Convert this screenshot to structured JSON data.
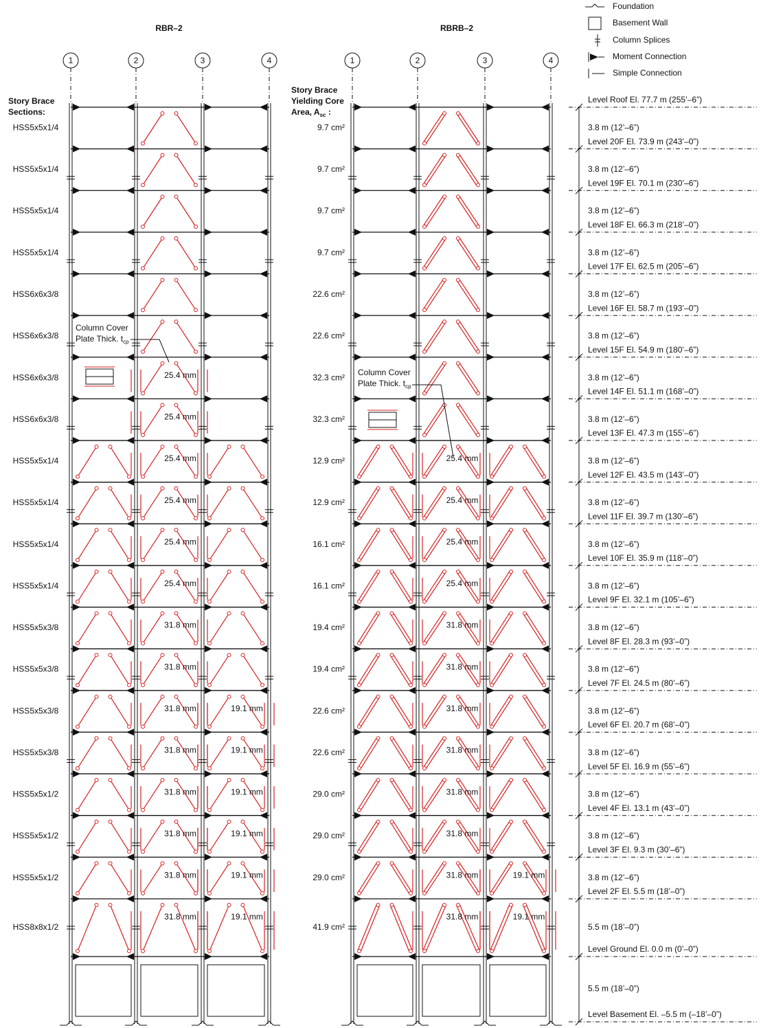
{
  "legend": [
    "Foundation",
    "Basement Wall",
    "Column Splices",
    "Moment Connection",
    "Simple Connection"
  ],
  "levels": [
    "Level Roof El. 77.7 m (255’–6”)",
    "Level 20F El. 73.9 m (243’–0”)",
    "Level 19F El. 70.1 m (230’–6”)",
    "Level 18F El. 66.3 m (218’–0”)",
    "Level 17F El. 62.5 m (205’–6”)",
    "Level 16F El. 58.7 m (193’–0”)",
    "Level 15F El. 54.9 m (180’–6”)",
    "Level 14F El. 51.1 m (168’–0”)",
    "Level 13F El. 47.3 m (155’–6”)",
    "Level 12F El. 43.5 m (143’–0”)",
    "Level 11F El. 39.7 m (130’–6”)",
    "Level 10F El. 35.9 m (118’–0”)",
    "Level 9F El. 32.1 m (105’–6”)",
    "Level 8F El. 28.3 m (93’–0”)",
    "Level 7F El. 24.5 m (80’–6”)",
    "Level 6F El. 20.7 m (68’–0”)",
    "Level 5F El. 16.9 m (55’–6”)",
    "Level 4F El. 13.1 m (43’–0”)",
    "Level 3F El. 9.3 m (30’–6”)",
    "Level 2F El. 5.5 m (18’–0”)",
    "Level Ground El. 0.0 m (0’–0”)",
    "Level Basement El. –5.5 m (–18’–0”)"
  ],
  "story_heights": [
    "3.8 m (12’–6”)",
    "3.8 m (12’–6”)",
    "3.8 m (12’–6”)",
    "3.8 m (12’–6”)",
    "3.8 m (12’–6”)",
    "3.8 m (12’–6”)",
    "3.8 m (12’–6”)",
    "3.8 m (12’–6”)",
    "3.8 m (12’–6”)",
    "3.8 m (12’–6”)",
    "3.8 m (12’–6”)",
    "3.8 m (12’–6”)",
    "3.8 m (12’–6”)",
    "3.8 m (12’–6”)",
    "3.8 m (12’–6”)",
    "3.8 m (12’–6”)",
    "3.8 m (12’–6”)",
    "3.8 m (12’–6”)",
    "3.8 m (12’–6”)",
    "5.5 m (18’–0”)",
    "5.5 m (18’–0”)"
  ],
  "frames": [
    {
      "title": "RBR–2",
      "gridlines": [
        "1",
        "2",
        "3",
        "4"
      ],
      "header": [
        "Story Brace",
        "Sections:"
      ],
      "cover_note": {
        "lines": [
          "Column Cover",
          "Plate Thick. t"
        ],
        "subscript": "cp"
      },
      "stories": [
        {
          "label": "HSS5x5x1/4",
          "braced": [
            false,
            true,
            false
          ],
          "cover": [
            null,
            null,
            null
          ]
        },
        {
          "label": "HSS5x5x1/4",
          "braced": [
            false,
            true,
            false
          ],
          "cover": [
            null,
            null,
            null
          ]
        },
        {
          "label": "HSS5x5x1/4",
          "braced": [
            false,
            true,
            false
          ],
          "cover": [
            null,
            null,
            null
          ]
        },
        {
          "label": "HSS5x5x1/4",
          "braced": [
            false,
            true,
            false
          ],
          "cover": [
            null,
            null,
            null
          ]
        },
        {
          "label": "HSS6x6x3/8",
          "braced": [
            false,
            true,
            false
          ],
          "cover": [
            null,
            null,
            null
          ]
        },
        {
          "label": "HSS6x6x3/8",
          "braced": [
            false,
            true,
            false
          ],
          "cover": [
            null,
            null,
            null
          ]
        },
        {
          "label": "HSS6x6x3/8",
          "braced": [
            false,
            true,
            false
          ],
          "cover": [
            null,
            "25.4 mm",
            null
          ]
        },
        {
          "label": "HSS6x6x3/8",
          "braced": [
            false,
            true,
            false
          ],
          "cover": [
            null,
            "25.4 mm",
            null
          ]
        },
        {
          "label": "HSS5x5x1/4",
          "braced": [
            true,
            true,
            true
          ],
          "cover": [
            null,
            "25.4 mm",
            null
          ]
        },
        {
          "label": "HSS5x5x1/4",
          "braced": [
            true,
            true,
            true
          ],
          "cover": [
            null,
            "25.4 mm",
            null
          ]
        },
        {
          "label": "HSS5x5x1/4",
          "braced": [
            true,
            true,
            true
          ],
          "cover": [
            null,
            "25.4 mm",
            null
          ]
        },
        {
          "label": "HSS5x5x1/4",
          "braced": [
            true,
            true,
            true
          ],
          "cover": [
            null,
            "25.4 mm",
            null
          ]
        },
        {
          "label": "HSS5x5x3/8",
          "braced": [
            true,
            true,
            true
          ],
          "cover": [
            null,
            "31.8 mm",
            null
          ]
        },
        {
          "label": "HSS5x5x3/8",
          "braced": [
            true,
            true,
            true
          ],
          "cover": [
            null,
            "31.8 mm",
            null
          ]
        },
        {
          "label": "HSS5x5x3/8",
          "braced": [
            true,
            true,
            true
          ],
          "cover": [
            null,
            "31.8 mm",
            "19.1 mm"
          ]
        },
        {
          "label": "HSS5x5x3/8",
          "braced": [
            true,
            true,
            true
          ],
          "cover": [
            null,
            "31.8 mm",
            "19.1 mm"
          ]
        },
        {
          "label": "HSS5x5x1/2",
          "braced": [
            true,
            true,
            true
          ],
          "cover": [
            null,
            "31.8 mm",
            "19.1 mm"
          ]
        },
        {
          "label": "HSS5x5x1/2",
          "braced": [
            true,
            true,
            true
          ],
          "cover": [
            null,
            "31.8 mm",
            "19.1 mm"
          ]
        },
        {
          "label": "HSS5x5x1/2",
          "braced": [
            true,
            true,
            true
          ],
          "cover": [
            null,
            "31.8 mm",
            "19.1 mm"
          ]
        },
        {
          "label": "HSS8x8x1/2",
          "braced": [
            true,
            true,
            true
          ],
          "cover": [
            null,
            "31.8 mm",
            "19.1 mm"
          ]
        }
      ]
    },
    {
      "title": "RBRB–2",
      "gridlines": [
        "1",
        "2",
        "3",
        "4"
      ],
      "header": [
        "Story Brace",
        "Yielding Core",
        "Area, A"
      ],
      "header_subscript": "sc",
      "header_suffix": " :",
      "cover_note": {
        "lines": [
          "Column Cover",
          "Plate Thick. t"
        ],
        "subscript": "cp"
      },
      "stories": [
        {
          "label": "9.7 cm²",
          "braced": [
            false,
            true,
            false
          ],
          "cover": [
            null,
            null,
            null
          ]
        },
        {
          "label": "9.7 cm²",
          "braced": [
            false,
            true,
            false
          ],
          "cover": [
            null,
            null,
            null
          ]
        },
        {
          "label": "9.7 cm²",
          "braced": [
            false,
            true,
            false
          ],
          "cover": [
            null,
            null,
            null
          ]
        },
        {
          "label": "9.7 cm²",
          "braced": [
            false,
            true,
            false
          ],
          "cover": [
            null,
            null,
            null
          ]
        },
        {
          "label": "22.6 cm²",
          "braced": [
            false,
            true,
            false
          ],
          "cover": [
            null,
            null,
            null
          ]
        },
        {
          "label": "22.6 cm²",
          "braced": [
            false,
            true,
            false
          ],
          "cover": [
            null,
            null,
            null
          ]
        },
        {
          "label": "32.3 cm²",
          "braced": [
            false,
            true,
            false
          ],
          "cover": [
            null,
            null,
            null
          ]
        },
        {
          "label": "32.3 cm²",
          "braced": [
            false,
            true,
            false
          ],
          "cover": [
            null,
            null,
            null
          ]
        },
        {
          "label": "12.9 cm²",
          "braced": [
            true,
            true,
            true
          ],
          "cover": [
            null,
            "25.4 mm",
            null
          ]
        },
        {
          "label": "12.9 cm²",
          "braced": [
            true,
            true,
            true
          ],
          "cover": [
            null,
            "25.4 mm",
            null
          ]
        },
        {
          "label": "16.1 cm²",
          "braced": [
            true,
            true,
            true
          ],
          "cover": [
            null,
            "25.4 mm",
            null
          ]
        },
        {
          "label": "16.1 cm²",
          "braced": [
            true,
            true,
            true
          ],
          "cover": [
            null,
            "25.4 mm",
            null
          ]
        },
        {
          "label": "19.4 cm²",
          "braced": [
            true,
            true,
            true
          ],
          "cover": [
            null,
            "31.8 mm",
            null
          ]
        },
        {
          "label": "19.4 cm²",
          "braced": [
            true,
            true,
            true
          ],
          "cover": [
            null,
            "31.8 mm",
            null
          ]
        },
        {
          "label": "22.6 cm²",
          "braced": [
            true,
            true,
            true
          ],
          "cover": [
            null,
            "31.8 mm",
            null
          ]
        },
        {
          "label": "22.6 cm²",
          "braced": [
            true,
            true,
            true
          ],
          "cover": [
            null,
            "31.8 mm",
            null
          ]
        },
        {
          "label": "29.0 cm²",
          "braced": [
            true,
            true,
            true
          ],
          "cover": [
            null,
            "31.8 mm",
            null
          ]
        },
        {
          "label": "29.0 cm²",
          "braced": [
            true,
            true,
            true
          ],
          "cover": [
            null,
            "31.8 mm",
            null
          ]
        },
        {
          "label": "29.0 cm²",
          "braced": [
            true,
            true,
            true
          ],
          "cover": [
            null,
            "31.8 mm",
            "19.1 mm"
          ]
        },
        {
          "label": "41.9 cm²",
          "braced": [
            true,
            true,
            true
          ],
          "cover": [
            null,
            "31.8 mm",
            "19.1 mm"
          ]
        }
      ]
    }
  ]
}
